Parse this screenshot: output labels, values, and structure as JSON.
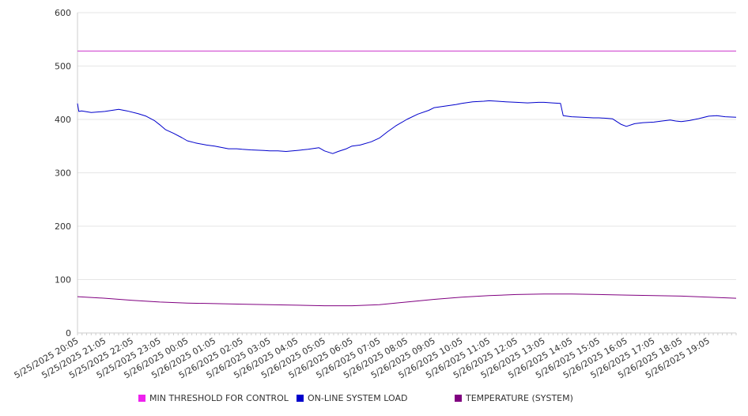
{
  "chart_data": {
    "type": "line",
    "ylim": [
      0,
      600
    ],
    "yticks": [
      0,
      100,
      200,
      300,
      400,
      500,
      600
    ],
    "x_tick_labels": [
      "5/25/2025 20:05",
      "5/25/2025 21:05",
      "5/25/2025 22:05",
      "5/25/2025 23:05",
      "5/26/2025 00:05",
      "5/26/2025 01:05",
      "5/26/2025 02:05",
      "5/26/2025 03:05",
      "5/26/2025 04:05",
      "5/26/2025 05:05",
      "5/26/2025 06:05",
      "5/26/2025 07:05",
      "5/26/2025 08:05",
      "5/26/2025 09:05",
      "5/26/2025 10:05",
      "5/26/2025 11:05",
      "5/26/2025 12:05",
      "5/26/2025 13:05",
      "5/26/2025 14:05",
      "5/26/2025 15:05",
      "5/26/2025 16:05",
      "5/26/2025 17:05",
      "5/26/2025 18:05",
      "5/26/2025 19:05"
    ],
    "x_range_hours": [
      0,
      24
    ],
    "grid": true,
    "legend_position": "bottom",
    "series": [
      {
        "name": "MIN THRESHOLD FOR CONTROL",
        "color": "#cc33cc",
        "x": [
          0,
          24
        ],
        "y": [
          528,
          528
        ]
      },
      {
        "name": "ON-LINE SYSTEM LOAD",
        "color": "#0000cc",
        "x": [
          0,
          0.05,
          0.15,
          0.5,
          1.0,
          1.5,
          1.8,
          2.2,
          2.5,
          2.8,
          3.0,
          3.2,
          3.5,
          3.8,
          4.0,
          4.3,
          4.7,
          5.0,
          5.5,
          5.8,
          6.0,
          6.3,
          6.8,
          7.0,
          7.3,
          7.6,
          8.0,
          8.4,
          8.8,
          9.0,
          9.3,
          9.5,
          9.8,
          10.0,
          10.3,
          10.7,
          11.0,
          11.3,
          11.6,
          12.0,
          12.4,
          12.8,
          13.0,
          13.4,
          13.8,
          14.0,
          14.4,
          14.8,
          15.0,
          15.3,
          15.6,
          16.0,
          16.4,
          16.8,
          17.0,
          17.3,
          17.6,
          17.7,
          18.0,
          18.4,
          18.8,
          19.0,
          19.3,
          19.5,
          19.8,
          20.0,
          20.3,
          20.6,
          21.0,
          21.3,
          21.6,
          21.8,
          22.0,
          22.3,
          22.6,
          23.0,
          23.3,
          23.6,
          24.0
        ],
        "y": [
          430,
          415,
          416,
          413,
          415,
          419,
          416,
          411,
          406,
          398,
          390,
          381,
          374,
          366,
          360,
          356,
          352,
          350,
          345,
          345,
          344,
          343,
          342,
          341,
          341,
          340,
          342,
          344,
          347,
          341,
          336,
          340,
          345,
          350,
          352,
          358,
          365,
          377,
          388,
          400,
          410,
          417,
          422,
          425,
          428,
          430,
          433,
          434,
          435,
          434,
          433,
          432,
          431,
          432,
          432,
          431,
          430,
          407,
          405,
          404,
          403,
          403,
          402,
          401,
          391,
          387,
          392,
          394,
          395,
          397,
          399,
          397,
          396,
          398,
          401,
          406,
          407,
          405,
          404
        ]
      },
      {
        "name": "TEMPERATURE (SYSTEM)",
        "color": "#800080",
        "x": [
          0,
          1,
          2,
          3,
          4,
          5,
          6,
          7,
          8,
          9,
          10,
          11,
          12,
          13,
          14,
          15,
          16,
          17,
          18,
          19,
          20,
          21,
          22,
          23,
          24
        ],
        "y": [
          68,
          65,
          61,
          58,
          56,
          55,
          54,
          53,
          52,
          51,
          51,
          53,
          58,
          63,
          67,
          70,
          72,
          73,
          73,
          72,
          71,
          70,
          69,
          67,
          65
        ]
      }
    ]
  }
}
